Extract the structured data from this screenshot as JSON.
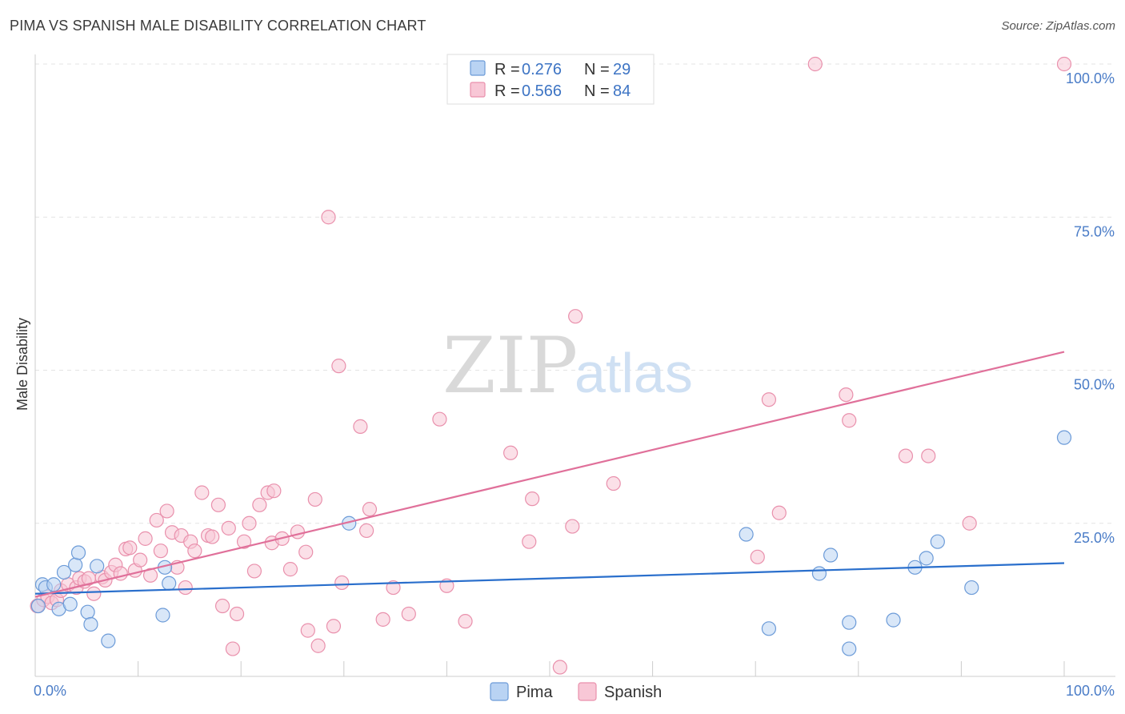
{
  "title": "PIMA VS SPANISH MALE DISABILITY CORRELATION CHART",
  "source": "Source: ZipAtlas.com",
  "watermark": {
    "zip": "ZIP",
    "atlas": "atlas"
  },
  "legend": {
    "rows": [
      {
        "r_label": "R =",
        "r_value": "0.276",
        "n_label": "N =",
        "n_value": "29"
      },
      {
        "r_label": "R =",
        "r_value": "0.566",
        "n_label": "N =",
        "n_value": "84"
      }
    ]
  },
  "bottom_legend": [
    "Pima",
    "Spanish"
  ],
  "colors": {
    "pima_fill": "#b9d3f3",
    "pima_stroke": "#6c9bd8",
    "pima_line": "#2a6fcc",
    "spanish_fill": "#f8c7d6",
    "spanish_stroke": "#e990ac",
    "spanish_line": "#e0709a",
    "grid": "#e3e3e3",
    "tick_label": "#4a7cc7"
  },
  "chart_data": {
    "type": "scatter",
    "title": "PIMA VS SPANISH MALE DISABILITY CORRELATION CHART",
    "xlabel": "",
    "ylabel": "Male Disability",
    "xlim": [
      0,
      100
    ],
    "ylim": [
      0,
      100
    ],
    "x_tick_labels": [
      "0.0%",
      "100.0%"
    ],
    "y_ticks": [
      25,
      50,
      75,
      100
    ],
    "y_tick_labels": [
      "25.0%",
      "50.0%",
      "75.0%",
      "100.0%"
    ],
    "grid": true,
    "legend_position": "top-center",
    "series": [
      {
        "name": "Pima",
        "r": 0.276,
        "n": 29,
        "trend": {
          "x": [
            0,
            100
          ],
          "y": [
            13.5,
            18.5
          ]
        },
        "points": [
          [
            0.3,
            11.5
          ],
          [
            0.7,
            15.0
          ],
          [
            1.0,
            14.5
          ],
          [
            1.8,
            15.0
          ],
          [
            2.3,
            11.0
          ],
          [
            2.8,
            17.0
          ],
          [
            3.4,
            11.8
          ],
          [
            3.9,
            18.2
          ],
          [
            4.2,
            20.2
          ],
          [
            5.1,
            10.5
          ],
          [
            5.4,
            8.5
          ],
          [
            6.0,
            18.0
          ],
          [
            7.1,
            5.8
          ],
          [
            12.6,
            17.8
          ],
          [
            12.4,
            10.0
          ],
          [
            13.0,
            15.2
          ],
          [
            30.5,
            25.0
          ],
          [
            69.1,
            23.2
          ],
          [
            71.3,
            7.8
          ],
          [
            76.2,
            16.8
          ],
          [
            77.3,
            19.8
          ],
          [
            79.1,
            8.8
          ],
          [
            79.1,
            4.5
          ],
          [
            83.4,
            9.2
          ],
          [
            85.5,
            17.8
          ],
          [
            86.6,
            19.3
          ],
          [
            87.7,
            22.0
          ],
          [
            91.0,
            14.5
          ],
          [
            100.0,
            39.0
          ]
        ]
      },
      {
        "name": "Spanish",
        "r": 0.566,
        "n": 84,
        "trend": {
          "x": [
            0,
            100
          ],
          "y": [
            13.0,
            53.0
          ]
        },
        "points": [
          [
            0.2,
            11.5
          ],
          [
            0.8,
            12.5
          ],
          [
            1.2,
            13.0
          ],
          [
            1.6,
            12.0
          ],
          [
            2.1,
            12.5
          ],
          [
            2.5,
            14.0
          ],
          [
            3.2,
            15.0
          ],
          [
            4.0,
            14.5
          ],
          [
            4.3,
            16.0
          ],
          [
            4.8,
            15.5
          ],
          [
            5.2,
            16.0
          ],
          [
            5.7,
            13.5
          ],
          [
            6.5,
            16.2
          ],
          [
            6.8,
            15.7
          ],
          [
            7.4,
            17.0
          ],
          [
            7.8,
            18.2
          ],
          [
            8.3,
            16.8
          ],
          [
            8.8,
            20.8
          ],
          [
            9.2,
            21.0
          ],
          [
            9.7,
            17.3
          ],
          [
            10.2,
            19.0
          ],
          [
            10.7,
            22.5
          ],
          [
            11.2,
            16.5
          ],
          [
            11.8,
            25.5
          ],
          [
            12.2,
            20.5
          ],
          [
            12.8,
            27.0
          ],
          [
            13.3,
            23.5
          ],
          [
            13.8,
            17.8
          ],
          [
            14.2,
            23.0
          ],
          [
            14.6,
            14.5
          ],
          [
            15.1,
            22.0
          ],
          [
            15.5,
            20.5
          ],
          [
            16.2,
            30.0
          ],
          [
            16.8,
            23.0
          ],
          [
            17.2,
            22.8
          ],
          [
            17.8,
            28.0
          ],
          [
            18.2,
            11.5
          ],
          [
            18.8,
            24.2
          ],
          [
            19.2,
            4.5
          ],
          [
            19.6,
            10.2
          ],
          [
            20.3,
            22.0
          ],
          [
            20.8,
            25.0
          ],
          [
            21.3,
            17.2
          ],
          [
            21.8,
            28.0
          ],
          [
            22.6,
            30.0
          ],
          [
            23.2,
            30.3
          ],
          [
            23.0,
            21.8
          ],
          [
            24.0,
            22.5
          ],
          [
            24.8,
            17.5
          ],
          [
            25.5,
            23.6
          ],
          [
            26.3,
            20.3
          ],
          [
            26.5,
            7.5
          ],
          [
            27.2,
            28.9
          ],
          [
            27.5,
            5.0
          ],
          [
            28.5,
            75.0
          ],
          [
            29.0,
            8.2
          ],
          [
            29.5,
            50.7
          ],
          [
            29.8,
            15.3
          ],
          [
            31.6,
            40.8
          ],
          [
            32.2,
            23.8
          ],
          [
            32.5,
            27.3
          ],
          [
            33.8,
            9.3
          ],
          [
            34.8,
            14.5
          ],
          [
            36.3,
            10.2
          ],
          [
            39.3,
            42.0
          ],
          [
            40.0,
            14.8
          ],
          [
            41.8,
            9.0
          ],
          [
            46.2,
            36.5
          ],
          [
            48.0,
            22.0
          ],
          [
            48.3,
            29.0
          ],
          [
            51.0,
            1.5
          ],
          [
            52.2,
            24.5
          ],
          [
            52.5,
            58.8
          ],
          [
            56.2,
            31.5
          ],
          [
            70.2,
            19.5
          ],
          [
            71.3,
            45.2
          ],
          [
            72.3,
            26.7
          ],
          [
            75.8,
            100.0
          ],
          [
            78.8,
            46.0
          ],
          [
            79.1,
            41.8
          ],
          [
            84.6,
            36.0
          ],
          [
            86.8,
            36.0
          ],
          [
            90.8,
            25.0
          ],
          [
            100.0,
            100.0
          ]
        ]
      }
    ]
  }
}
